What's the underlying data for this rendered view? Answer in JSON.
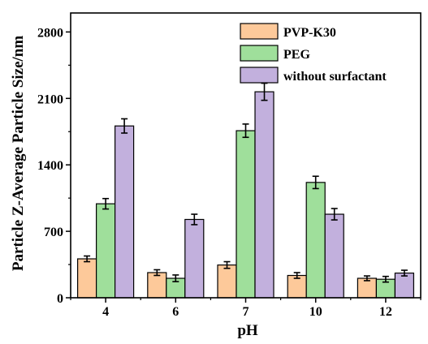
{
  "chart_data": {
    "type": "bar",
    "xlabel": "pH",
    "ylabel": "Particle Z-Average Particle Size/nm",
    "categories": [
      "4",
      "6",
      "7",
      "10",
      "12"
    ],
    "yticks": [
      0,
      700,
      1400,
      2100,
      2800
    ],
    "ylim": [
      0,
      3000
    ],
    "legend_position": "top-right",
    "grid": false,
    "series": [
      {
        "name": "PVP-K30",
        "color": "#fdc99a",
        "values": [
          410,
          265,
          345,
          235,
          205
        ],
        "errors": [
          30,
          30,
          35,
          30,
          25
        ]
      },
      {
        "name": "PEG",
        "color": "#9fdf9b",
        "values": [
          990,
          205,
          1760,
          1215,
          195
        ],
        "errors": [
          55,
          35,
          70,
          65,
          30
        ]
      },
      {
        "name": "without surfactant",
        "color": "#c2b0dd",
        "values": [
          1810,
          825,
          2170,
          880,
          260
        ],
        "errors": [
          75,
          55,
          90,
          60,
          30
        ]
      }
    ]
  }
}
